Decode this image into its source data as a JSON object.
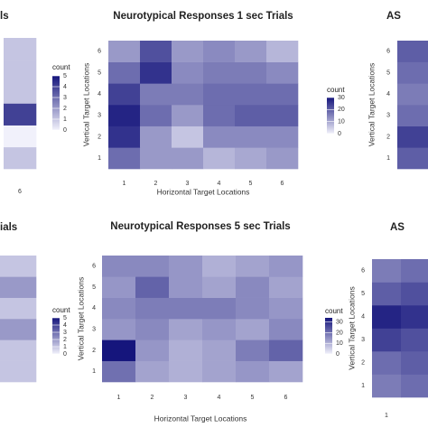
{
  "chart_data": [
    {
      "type": "heatmap",
      "title": "Neurotypical Responses 1 sec Trials",
      "x_label": "Horizontal Target Locations",
      "y_label": "Vertical Target Locations",
      "x": [
        "1",
        "2",
        "3",
        "4",
        "5",
        "6"
      ],
      "y": [
        "1",
        "2",
        "3",
        "4",
        "5",
        "6"
      ],
      "values": [
        [
          18,
          12,
          12,
          8,
          10,
          12
        ],
        [
          26,
          12,
          6,
          14,
          14,
          14
        ],
        [
          28,
          18,
          12,
          18,
          20,
          20
        ],
        [
          24,
          16,
          16,
          18,
          18,
          18
        ],
        [
          18,
          26,
          14,
          16,
          16,
          14
        ],
        [
          12,
          22,
          12,
          14,
          12,
          8
        ]
      ],
      "legend_title": "count",
      "zlim": [
        0,
        30
      ],
      "zticks": [
        0,
        10,
        20,
        30
      ],
      "colors": [
        "#f1f1fb",
        "#15157c"
      ]
    },
    {
      "type": "heatmap",
      "title": "Neurotypical Responses 5 sec Trials",
      "x_label": "Horizontal Target Locations",
      "y_label": "Vertical Target Locations",
      "x": [
        "1",
        "2",
        "3",
        "4",
        "5",
        "6"
      ],
      "y": [
        "1",
        "2",
        "3",
        "4",
        "5",
        "6"
      ],
      "values": [
        [
          20,
          12,
          10,
          12,
          14,
          12
        ],
        [
          34,
          14,
          10,
          12,
          18,
          22
        ],
        [
          14,
          16,
          12,
          14,
          12,
          16
        ],
        [
          16,
          18,
          18,
          18,
          16,
          14
        ],
        [
          14,
          22,
          14,
          12,
          16,
          12
        ],
        [
          16,
          16,
          14,
          10,
          12,
          14
        ]
      ],
      "legend_title": "count",
      "zlim": [
        0,
        34
      ],
      "zticks": [
        0,
        10,
        20,
        30
      ],
      "colors": [
        "#f1f1fb",
        "#15157c"
      ]
    },
    {
      "type": "heatmap",
      "title": "ls",
      "x": [
        "6"
      ],
      "values": [
        [
          1
        ],
        [
          0
        ],
        [
          4
        ],
        [
          1
        ],
        [
          1
        ],
        [
          1
        ]
      ],
      "legend_title": "count",
      "zlim": [
        0,
        5
      ],
      "zticks": [
        0,
        1,
        2,
        3,
        4,
        5
      ],
      "colors": [
        "#f1f1fb",
        "#15157c"
      ]
    },
    {
      "type": "heatmap",
      "title": "ials",
      "values": [
        [
          1
        ],
        [
          1
        ],
        [
          2
        ],
        [
          1
        ],
        [
          2
        ],
        [
          1
        ]
      ],
      "legend_title": "count",
      "zlim": [
        0,
        5
      ],
      "zticks": [
        0,
        1,
        2,
        3,
        4,
        5
      ],
      "colors": [
        "#f1f1fb",
        "#15157c"
      ]
    },
    {
      "type": "heatmap",
      "title": "AS",
      "y_label": "Vertical Target Locations",
      "y": [
        "1",
        "2",
        "3",
        "4",
        "5",
        "6"
      ],
      "values": [
        [
          20
        ],
        [
          24
        ],
        [
          18
        ],
        [
          16
        ],
        [
          18
        ],
        [
          20
        ]
      ],
      "zlim": [
        0,
        30
      ],
      "colors": [
        "#f1f1fb",
        "#15157c"
      ]
    },
    {
      "type": "heatmap",
      "title": "AS",
      "y_label": "Vertical Target Locations",
      "x": [
        "1",
        null
      ],
      "y": [
        "1",
        "2",
        "3",
        "4",
        "5",
        "6"
      ],
      "values": [
        [
          16,
          18
        ],
        [
          18,
          20
        ],
        [
          24,
          22
        ],
        [
          28,
          26
        ],
        [
          20,
          22
        ],
        [
          16,
          18
        ]
      ],
      "zlim": [
        0,
        30
      ],
      "colors": [
        "#f1f1fb",
        "#15157c"
      ]
    }
  ]
}
